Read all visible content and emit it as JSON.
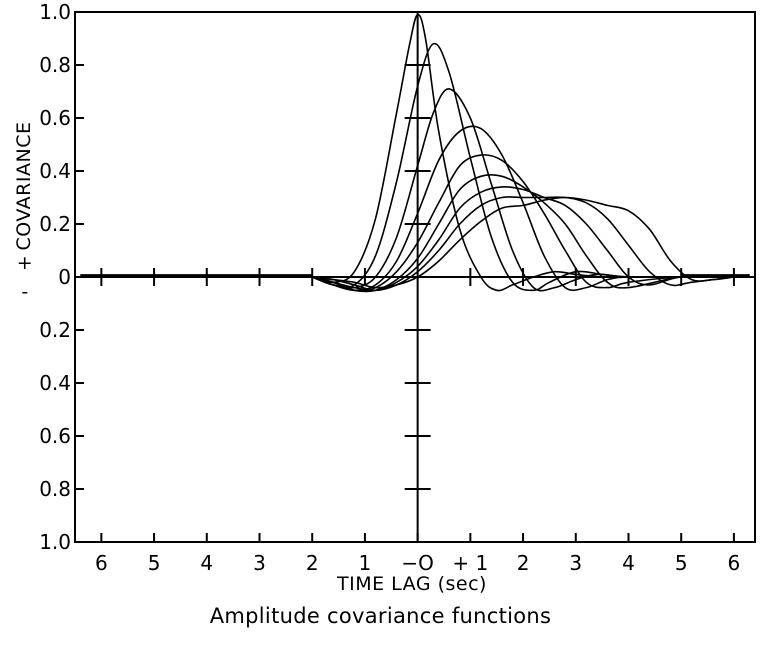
{
  "chart_data": {
    "type": "line",
    "title": "",
    "caption": "Amplitude covariance functions",
    "xlabel": "TIME LAG (sec)",
    "ylabel": "COVARIANCE",
    "ylabel_plus": "+",
    "ylabel_minus": "-",
    "xlim": [
      -6.5,
      6.4
    ],
    "ylim": [
      -1.0,
      1.0
    ],
    "x_tick_values": [
      -6,
      -5,
      -4,
      -3,
      -2,
      -1,
      0,
      1,
      2,
      3,
      4,
      5,
      6
    ],
    "x_tick_labels": [
      "6",
      "5",
      "4",
      "3",
      "2",
      "1",
      "−O",
      "+ 1",
      "2",
      "3",
      "4",
      "5",
      "6"
    ],
    "y_tick_values": [
      1.0,
      0.8,
      0.6,
      0.4,
      0.2,
      0,
      -0.2,
      -0.4,
      -0.6,
      -0.8,
      -1.0
    ],
    "y_tick_labels": [
      "1.0",
      "0.8",
      "0.6",
      "0.4",
      "0.2",
      "0",
      "0.2",
      "0.4",
      "0.6",
      "0.8",
      "1.0"
    ],
    "center_axis_ticks": [
      1.0,
      0.8,
      0.6,
      0.4,
      0.2,
      -0.2,
      -0.4,
      -0.6,
      -0.8
    ],
    "series": [
      {
        "x": [
          -2.0,
          -1.6,
          -1.2,
          -0.8,
          -0.4,
          -0.15,
          0,
          0.15,
          0.4,
          0.8,
          1.2,
          1.5,
          1.8,
          2.2,
          2.6,
          3.0,
          3.5,
          4.0,
          5.0,
          6.0
        ],
        "y": [
          0,
          -0.02,
          0.02,
          0.22,
          0.62,
          0.88,
          0.99,
          0.9,
          0.55,
          0.18,
          0.0,
          -0.05,
          -0.03,
          0.0,
          0.02,
          0.01,
          0.0,
          0.0,
          0.0,
          0.0
        ]
      },
      {
        "x": [
          -2.0,
          -1.6,
          -1.2,
          -0.8,
          -0.4,
          0,
          0.3,
          0.6,
          1.0,
          1.4,
          1.8,
          2.2,
          2.5,
          3.0,
          3.5,
          4.0,
          5.0,
          6.0
        ],
        "y": [
          0,
          -0.03,
          -0.03,
          0.08,
          0.36,
          0.72,
          0.88,
          0.77,
          0.45,
          0.15,
          -0.02,
          -0.05,
          -0.02,
          0.02,
          0.01,
          0.0,
          0.0,
          0.0
        ]
      },
      {
        "x": [
          -2.0,
          -1.6,
          -1.2,
          -0.8,
          -0.4,
          0,
          0.3,
          0.6,
          1.0,
          1.4,
          1.8,
          2.2,
          2.6,
          3.0,
          3.4,
          4.0,
          5.0,
          6.0
        ],
        "y": [
          0,
          -0.03,
          -0.04,
          0.0,
          0.15,
          0.42,
          0.62,
          0.71,
          0.6,
          0.35,
          0.1,
          -0.04,
          -0.04,
          -0.01,
          0.01,
          0.0,
          0.0,
          0.0
        ]
      },
      {
        "x": [
          -2.0,
          -1.6,
          -1.2,
          -0.8,
          -0.4,
          0,
          0.4,
          0.8,
          1.2,
          1.6,
          2.0,
          2.4,
          2.8,
          3.2,
          3.6,
          4.0,
          5.0,
          6.0
        ],
        "y": [
          0,
          -0.03,
          -0.05,
          -0.03,
          0.06,
          0.24,
          0.44,
          0.55,
          0.56,
          0.46,
          0.28,
          0.08,
          -0.04,
          -0.04,
          -0.01,
          0.0,
          0.0,
          0.0
        ]
      },
      {
        "x": [
          -2.0,
          -1.6,
          -1.2,
          -0.8,
          -0.4,
          0,
          0.4,
          0.8,
          1.2,
          1.6,
          2.0,
          2.4,
          2.8,
          3.2,
          3.6,
          4.0,
          5.0,
          6.0
        ],
        "y": [
          0,
          -0.02,
          -0.05,
          -0.04,
          0.02,
          0.13,
          0.28,
          0.42,
          0.46,
          0.44,
          0.36,
          0.24,
          0.1,
          -0.02,
          -0.04,
          -0.02,
          0.0,
          0.0
        ]
      },
      {
        "x": [
          -2.0,
          -1.6,
          -1.2,
          -0.8,
          -0.4,
          0,
          0.4,
          0.8,
          1.2,
          1.6,
          2.0,
          2.4,
          2.8,
          3.2,
          3.6,
          4.0,
          5.0,
          6.0
        ],
        "y": [
          0,
          -0.02,
          -0.05,
          -0.05,
          -0.01,
          0.07,
          0.2,
          0.33,
          0.38,
          0.38,
          0.34,
          0.28,
          0.2,
          0.08,
          -0.02,
          -0.04,
          0.0,
          0.0
        ]
      },
      {
        "x": [
          -2.0,
          -1.6,
          -1.2,
          -0.8,
          -0.4,
          0,
          0.4,
          0.8,
          1.2,
          1.6,
          2.0,
          2.4,
          2.8,
          3.2,
          3.6,
          4.0,
          4.4,
          5.0,
          6.0
        ],
        "y": [
          0,
          -0.02,
          -0.04,
          -0.05,
          -0.02,
          0.04,
          0.14,
          0.26,
          0.32,
          0.34,
          0.33,
          0.3,
          0.27,
          0.2,
          0.1,
          0.0,
          -0.03,
          0.0,
          0.0
        ]
      },
      {
        "x": [
          -2.0,
          -1.6,
          -1.2,
          -0.8,
          -0.4,
          0,
          0.4,
          0.8,
          1.2,
          1.6,
          2.0,
          2.4,
          2.8,
          3.2,
          3.6,
          4.0,
          4.4,
          4.8,
          5.2,
          6.0
        ],
        "y": [
          0,
          -0.01,
          -0.03,
          -0.05,
          -0.03,
          0.02,
          0.1,
          0.2,
          0.27,
          0.3,
          0.3,
          0.3,
          0.3,
          0.28,
          0.22,
          0.12,
          0.02,
          -0.03,
          -0.02,
          0.0
        ]
      },
      {
        "x": [
          -2.0,
          -1.6,
          -1.2,
          -0.8,
          -0.4,
          0,
          0.4,
          0.8,
          1.2,
          1.6,
          2.0,
          2.4,
          2.8,
          3.2,
          3.6,
          4.0,
          4.4,
          4.8,
          5.2,
          5.6,
          6.0
        ],
        "y": [
          0,
          -0.01,
          -0.02,
          -0.04,
          -0.03,
          0.0,
          0.06,
          0.14,
          0.21,
          0.26,
          0.27,
          0.29,
          0.3,
          0.29,
          0.27,
          0.25,
          0.18,
          0.06,
          -0.01,
          -0.01,
          0.0
        ]
      }
    ],
    "grid": false,
    "legend": "none"
  }
}
